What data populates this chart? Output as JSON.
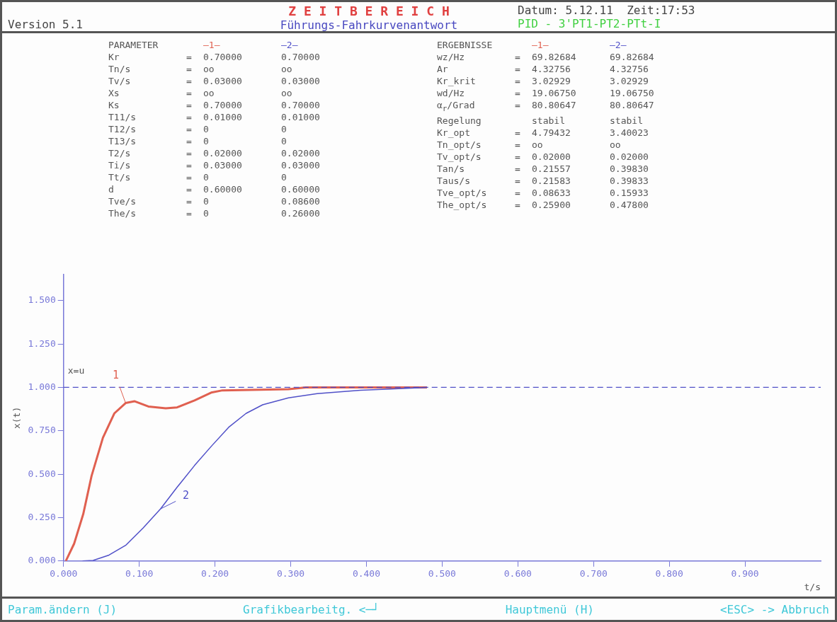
{
  "chart_data": {
    "type": "line",
    "title": "Z E I T B E R E I C H",
    "subtitle": "Führungs-Fahrkurvenantwort",
    "xlabel": "t/s",
    "ylabel": "x(t)",
    "annotations": [
      "Version 5.1",
      "Datum: 5.12.11  Zeit:17:53",
      "PID - 3'PT1-PT2-PTt-I",
      "PARAMETER\t—1—\t—2—",
      "Kr\t=\t0.70000\t0.70000",
      "Tn/s\t=\too\too",
      "Tv/s\t=\t0.03000\t0.03000",
      "Xs\t=\too\too",
      "Ks\t=\t0.70000\t0.70000",
      "T11/s\t=\t0.01000\t0.01000",
      "T12/s\t=\t0\t0",
      "T13/s\t=\t0\t0",
      "T2/s\t=\t0.02000\t0.02000",
      "Ti/s\t=\t0.03000\t0.03000",
      "Tt/s\t=\t0\t0",
      "d\t=\t0.60000\t0.60000",
      "Tve/s\t=\t0\t0.08600",
      "The/s\t=\t0\t0.26000",
      "ERGEBNISSE\t—1—\t—2—",
      "wz/Hz\t=\t69.82684\t69.82684",
      "Ar\t=\t4.32756\t4.32756",
      "Kr_krit\t=\t3.02929\t3.02929",
      "wd/Hz\t=\t19.06750\t19.06750",
      "α$_{r}$/Grad\t=\t80.80647\t80.80647",
      "Regelung\t\tstabil\tstabil",
      "Kr_opt\t=\t4.79432\t3.40023",
      "Tn_opt/s\t=\too\too",
      "Tv_opt/s\t=\t0.02000\t0.02000",
      "Tan/s\t=\t0.21557\t0.39830",
      "Taus/s\t=\t0.21583\t0.39833",
      "Tve_opt/s\t=\t0.08633\t0.15933",
      "The_opt/s\t=\t0.25900\t0.47800",
      "Param.ändern (J)",
      "Grafikbearbeitg. <─┘",
      "Hauptmenü (H)",
      "<ESC> -> Abbruch"
    ],
    "series": [
      {
        "name": "1",
        "color": "#e06050",
        "x": [
          0.003,
          0.014,
          0.026,
          0.037,
          0.052,
          0.067,
          0.082,
          0.094,
          0.112,
          0.135,
          0.15,
          0.173,
          0.195,
          0.21,
          0.297,
          0.32,
          0.48
        ],
        "values": [
          0,
          0.1,
          0.27,
          0.49,
          0.71,
          0.85,
          0.91,
          0.92,
          0.89,
          0.88,
          0.885,
          0.925,
          0.97,
          0.983,
          0.99,
          1.0,
          1.0
        ]
      },
      {
        "name": "2",
        "color": "#5050c8",
        "x": [
          0.025,
          0.039,
          0.06,
          0.082,
          0.105,
          0.128,
          0.15,
          0.173,
          0.195,
          0.218,
          0.241,
          0.263,
          0.297,
          0.335,
          0.392,
          0.426,
          0.48
        ],
        "values": [
          0,
          0.003,
          0.034,
          0.09,
          0.19,
          0.3,
          0.425,
          0.55,
          0.66,
          0.77,
          0.85,
          0.9,
          0.94,
          0.964,
          0.984,
          0.99,
          1.0
        ]
      }
    ],
    "xlim": [
      0,
      1.0
    ],
    "ylim": [
      0,
      1.65
    ],
    "xticks": [
      {
        "value": 0,
        "label": "0.000"
      },
      {
        "value": 0.1,
        "label": "0.100"
      },
      {
        "value": 0.2,
        "label": "0.200"
      },
      {
        "value": 0.3,
        "label": "0.300"
      },
      {
        "value": 0.4,
        "label": "0.400"
      },
      {
        "value": 0.5,
        "label": "0.500"
      },
      {
        "value": 0.6,
        "label": "0.600"
      },
      {
        "value": 0.7,
        "label": "0.700"
      },
      {
        "value": 0.8,
        "label": "0.800"
      },
      {
        "value": 0.9,
        "label": "0.900"
      }
    ],
    "yticks": [
      {
        "value": 0,
        "label": "0.000"
      },
      {
        "value": 0.25,
        "label": "0.250"
      },
      {
        "value": 0.5,
        "label": "0.500"
      },
      {
        "value": 0.75,
        "label": "0.750"
      },
      {
        "value": 1,
        "label": "1.000"
      },
      {
        "value": 1.25,
        "label": "1.250"
      },
      {
        "value": 1.5,
        "label": "1.500"
      }
    ],
    "ref_lines": [
      {
        "axis": "y",
        "value": 1,
        "label": "x=u",
        "color": "#5050c8",
        "line_style": "dashed"
      }
    ],
    "grid": false,
    "legend": false,
    "marker": "none",
    "line_style": "solid"
  }
}
